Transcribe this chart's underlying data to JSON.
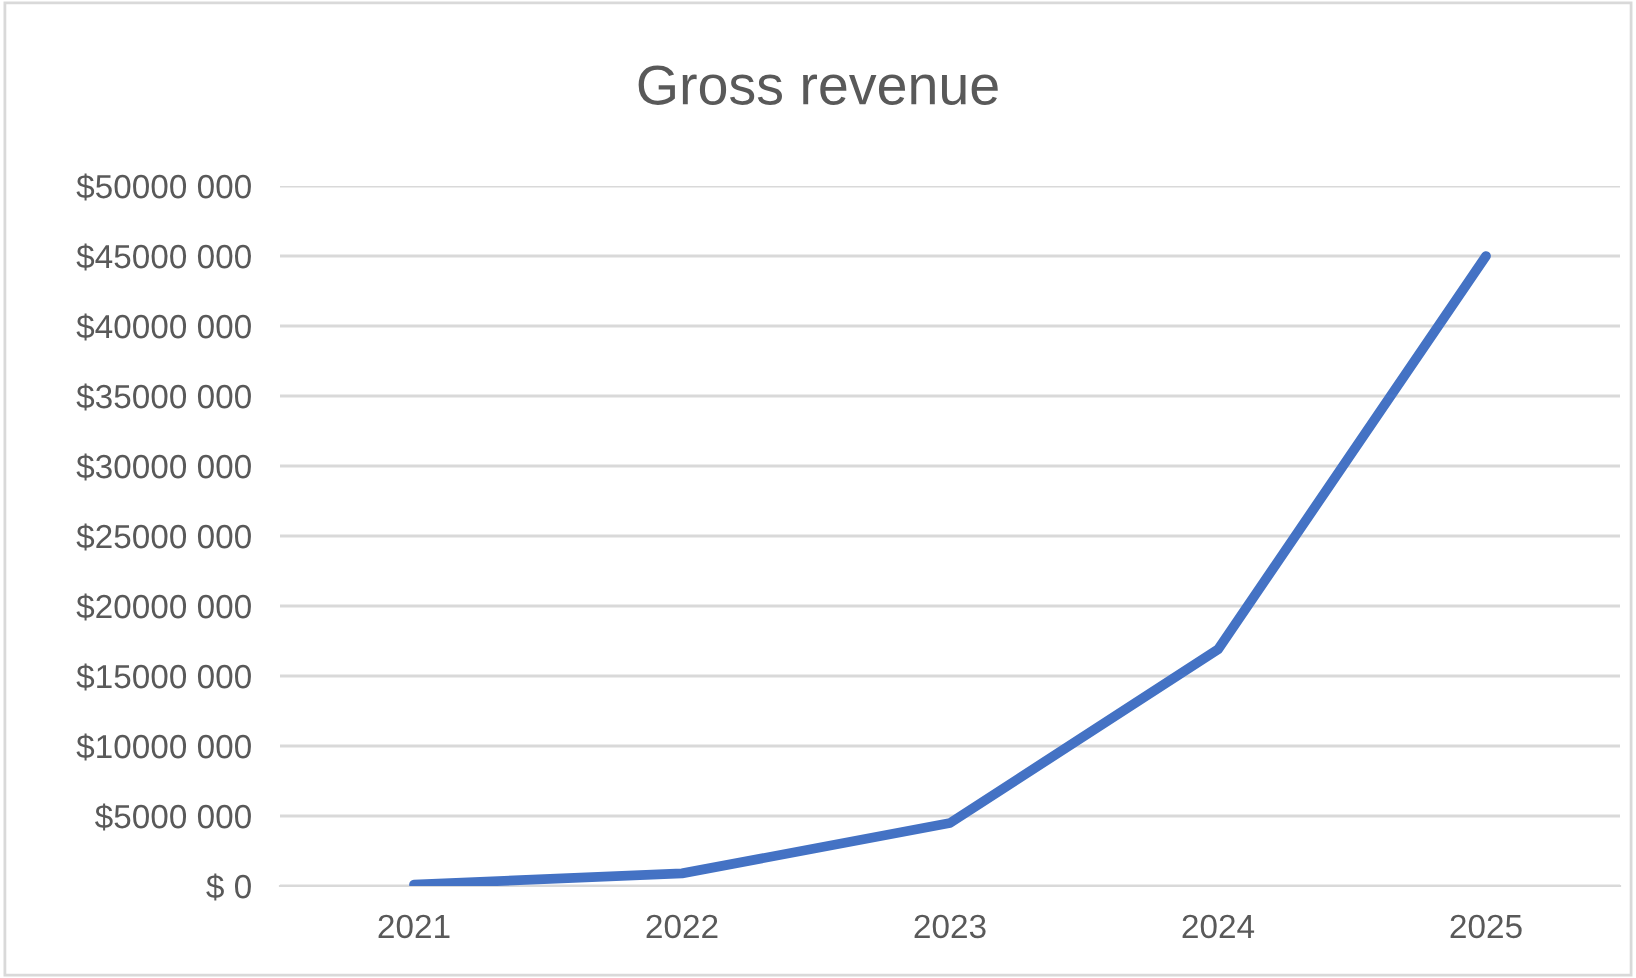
{
  "chart_data": {
    "type": "line",
    "title": "Gross revenue",
    "categories": [
      "2021",
      "2022",
      "2023",
      "2024",
      "2025"
    ],
    "series": [
      {
        "color": "#4472c4",
        "values": [
          100000,
          900000,
          4500000,
          16900000,
          45000000
        ]
      }
    ],
    "ylim": [
      0,
      50000000
    ],
    "yticks": [
      {
        "value": 0,
        "label": "$ 0"
      },
      {
        "value": 5000000,
        "label": "$5000 000"
      },
      {
        "value": 10000000,
        "label": "$10000 000"
      },
      {
        "value": 15000000,
        "label": "$15000 000"
      },
      {
        "value": 20000000,
        "label": "$20000 000"
      },
      {
        "value": 25000000,
        "label": "$25000 000"
      },
      {
        "value": 30000000,
        "label": "$30000 000"
      },
      {
        "value": 35000000,
        "label": "$35000 000"
      },
      {
        "value": 40000000,
        "label": "$40000 000"
      },
      {
        "value": 45000000,
        "label": "$45000 000"
      },
      {
        "value": 50000000,
        "label": "$50000 000"
      }
    ],
    "grid": "y",
    "marker": "none",
    "line_style": "solid"
  }
}
